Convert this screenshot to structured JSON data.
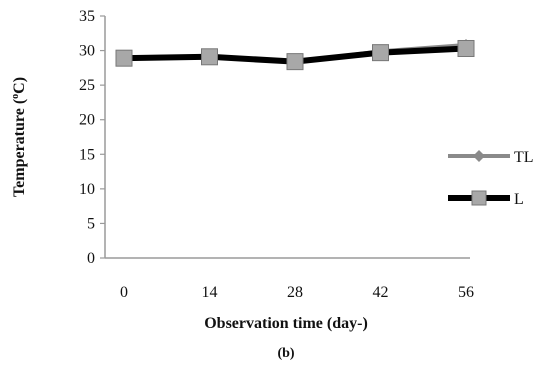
{
  "chart_data": {
    "type": "line",
    "title": "",
    "panel_label": "(b)",
    "xlabel": "Observation time (day-)",
    "ylabel_main": "Temperature (",
    "ylabel_sup": "o",
    "ylabel_tail": "C)",
    "x": [
      0,
      14,
      28,
      42,
      56
    ],
    "x_tick_labels": [
      "0",
      "14",
      "28",
      "42",
      "56"
    ],
    "ylim": [
      0,
      35
    ],
    "y_ticks": [
      0,
      5,
      10,
      15,
      20,
      25,
      30,
      35
    ],
    "y_tick_labels": [
      "0",
      "5",
      "10",
      "15",
      "20",
      "25",
      "30",
      "35"
    ],
    "grid": false,
    "legend_position": "right",
    "series": [
      {
        "name": "TL",
        "values": [
          29.0,
          29.2,
          28.3,
          29.9,
          30.8
        ],
        "color": "#8a8a8a",
        "marker": "diamond"
      },
      {
        "name": "L",
        "values": [
          28.9,
          29.1,
          28.4,
          29.7,
          30.3
        ],
        "color": "#000000",
        "marker": "square",
        "marker_color": "#a8a8a8"
      }
    ]
  }
}
